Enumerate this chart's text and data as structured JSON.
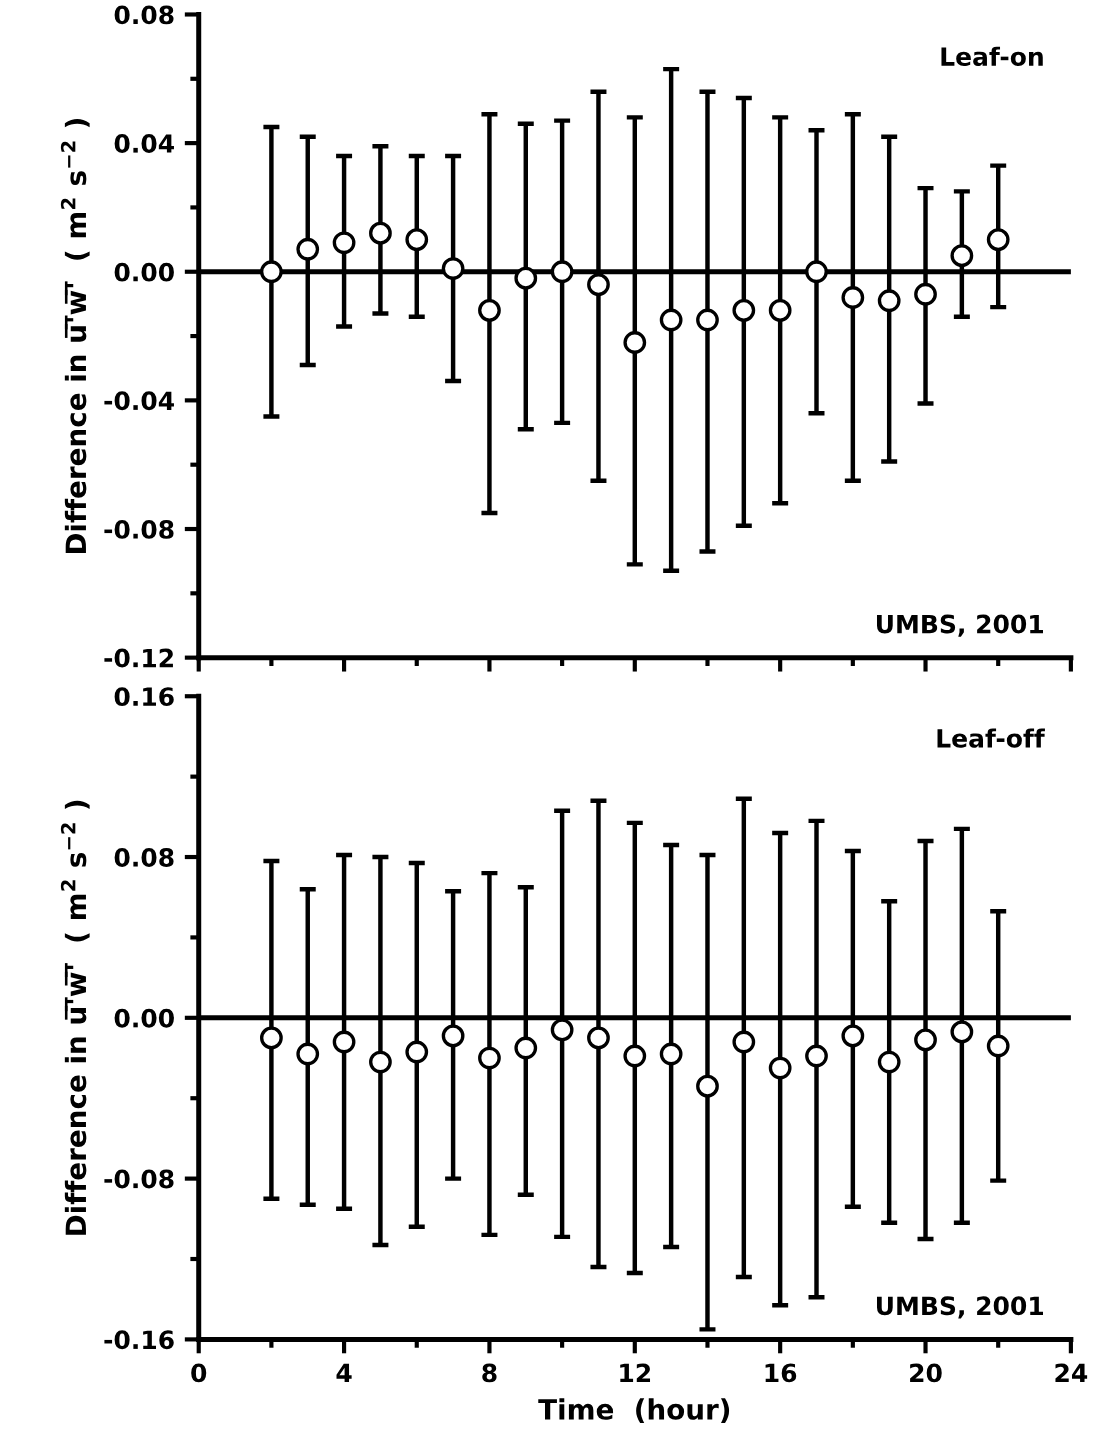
{
  "chart_data": [
    {
      "type": "scatter",
      "ylabel": "Difference in u̅'̅w̅'̅  ( m$^{2}$ s$^{−2}$ )",
      "annotations": [
        "Leaf-on",
        "UMBS, 2001"
      ],
      "x": [
        2,
        3,
        4,
        5,
        6,
        7,
        8,
        9,
        10,
        11,
        12,
        13,
        14,
        15,
        16,
        17,
        18,
        19,
        20,
        21,
        22
      ],
      "values": [
        0.0,
        0.007,
        0.009,
        0.012,
        0.01,
        0.001,
        -0.012,
        -0.002,
        0.0,
        -0.004,
        -0.022,
        -0.015,
        -0.015,
        -0.012,
        -0.012,
        0.0,
        -0.008,
        -0.009,
        -0.007,
        0.005,
        0.01
      ],
      "errors": [
        [
          -0.045,
          0.045
        ],
        [
          -0.029,
          0.042
        ],
        [
          -0.017,
          0.036
        ],
        [
          -0.013,
          0.039
        ],
        [
          -0.014,
          0.036
        ],
        [
          -0.034,
          0.036
        ],
        [
          -0.075,
          0.049
        ],
        [
          -0.049,
          0.046
        ],
        [
          -0.047,
          0.047
        ],
        [
          -0.065,
          0.056
        ],
        [
          -0.091,
          0.048
        ],
        [
          -0.093,
          0.063
        ],
        [
          -0.087,
          0.056
        ],
        [
          -0.079,
          0.054
        ],
        [
          -0.072,
          0.048
        ],
        [
          -0.044,
          0.044
        ],
        [
          -0.065,
          0.049
        ],
        [
          -0.059,
          0.042
        ],
        [
          -0.041,
          0.026
        ],
        [
          -0.014,
          0.025
        ],
        [
          -0.011,
          0.033
        ]
      ],
      "xlim": [
        0,
        24
      ],
      "xticks": [
        0,
        4,
        8,
        12,
        16,
        20,
        24
      ],
      "ylim": [
        -0.12,
        0.08
      ],
      "yticks": [
        {
          "value": -0.12,
          "label": "-0.12"
        },
        {
          "value": -0.08,
          "label": "-0.08"
        },
        {
          "value": -0.04,
          "label": "-0.04"
        },
        {
          "value": 0,
          "label": "0.00"
        },
        {
          "value": 0.04,
          "label": "0.04"
        },
        {
          "value": 0.08,
          "label": "0.08"
        }
      ],
      "tick_labels": "y",
      "marker": "circle",
      "color": "#000000",
      "ref_lines": [
        {
          "axis": "y",
          "value": 0
        }
      ]
    },
    {
      "type": "scatter",
      "xlabel": "Time  (hour)",
      "ylabel": "Difference in u̅'̅w̅'̅  ( m$^{2}$ s$^{−2}$ )",
      "annotations": [
        "Leaf-off",
        "UMBS, 2001"
      ],
      "x": [
        2,
        3,
        4,
        5,
        6,
        7,
        8,
        9,
        10,
        11,
        12,
        13,
        14,
        15,
        16,
        17,
        18,
        19,
        20,
        21,
        22
      ],
      "values": [
        -0.01,
        -0.018,
        -0.012,
        -0.022,
        -0.017,
        -0.009,
        -0.02,
        -0.015,
        -0.006,
        -0.01,
        -0.019,
        -0.018,
        -0.034,
        -0.012,
        -0.025,
        -0.019,
        -0.009,
        -0.022,
        -0.011,
        -0.007,
        -0.014
      ],
      "errors": [
        [
          -0.09,
          0.078
        ],
        [
          -0.093,
          0.064
        ],
        [
          -0.095,
          0.081
        ],
        [
          -0.113,
          0.08
        ],
        [
          -0.104,
          0.077
        ],
        [
          -0.08,
          0.063
        ],
        [
          -0.108,
          0.072
        ],
        [
          -0.088,
          0.065
        ],
        [
          -0.109,
          0.103
        ],
        [
          -0.124,
          0.108
        ],
        [
          -0.127,
          0.097
        ],
        [
          -0.114,
          0.086
        ],
        [
          -0.155,
          0.081
        ],
        [
          -0.129,
          0.109
        ],
        [
          -0.143,
          0.092
        ],
        [
          -0.139,
          0.098
        ],
        [
          -0.094,
          0.083
        ],
        [
          -0.102,
          0.058
        ],
        [
          -0.11,
          0.088
        ],
        [
          -0.102,
          0.094
        ],
        [
          -0.081,
          0.053
        ]
      ],
      "xlim": [
        0,
        24
      ],
      "xticks": [
        0,
        4,
        8,
        12,
        16,
        20,
        24
      ],
      "ylim": [
        -0.16,
        0.16
      ],
      "yticks": [
        {
          "value": -0.16,
          "label": "-0.16"
        },
        {
          "value": -0.08,
          "label": "-0.08"
        },
        {
          "value": 0,
          "label": "0.00"
        },
        {
          "value": 0.08,
          "label": "0.08"
        },
        {
          "value": 0.16,
          "label": "0.16"
        }
      ],
      "marker": "circle",
      "color": "#000000",
      "ref_lines": [
        {
          "axis": "y",
          "value": 0
        }
      ]
    }
  ]
}
